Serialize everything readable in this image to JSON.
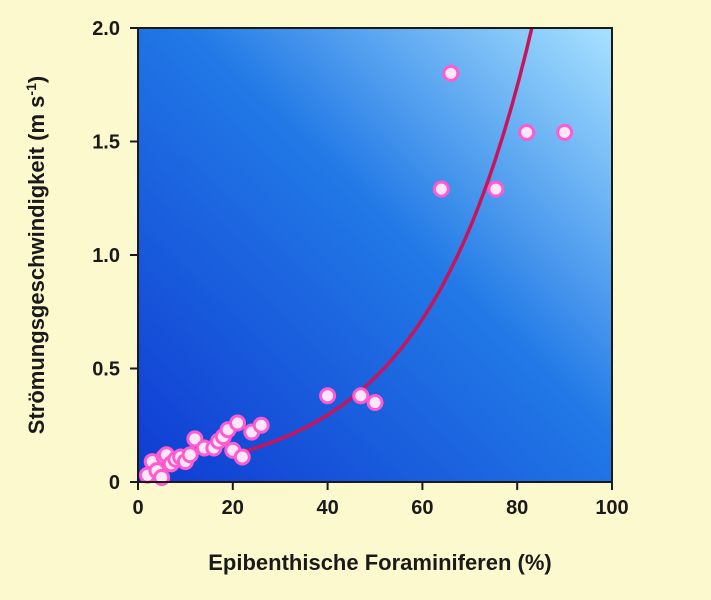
{
  "chart_data": {
    "type": "scatter",
    "xlabel": "Epibenthische Foraminiferen (%)",
    "ylabel_main": "Strömungsgeschwindigkeit (m s",
    "ylabel_sup": "-1",
    "ylabel_close": ")",
    "xlim": [
      0,
      100
    ],
    "ylim": [
      0,
      2.0
    ],
    "xticks": [
      "0",
      "20",
      "40",
      "60",
      "80",
      "100"
    ],
    "yticks": [
      "0",
      "0.5",
      "1.0",
      "1.5",
      "2.0"
    ],
    "grid": false,
    "legend": "none",
    "series": [
      {
        "points": [
          [
            2,
            0.03
          ],
          [
            3,
            0.09
          ],
          [
            4,
            0.05
          ],
          [
            5,
            0.02
          ],
          [
            5.5,
            0.11
          ],
          [
            6,
            0.12
          ],
          [
            7,
            0.08
          ],
          [
            8,
            0.1
          ],
          [
            9,
            0.11
          ],
          [
            10,
            0.09
          ],
          [
            11,
            0.12
          ],
          [
            12,
            0.19
          ],
          [
            14,
            0.15
          ],
          [
            16,
            0.15
          ],
          [
            17,
            0.18
          ],
          [
            18,
            0.2
          ],
          [
            19,
            0.23
          ],
          [
            20,
            0.14
          ],
          [
            21,
            0.26
          ],
          [
            22,
            0.11
          ],
          [
            24,
            0.22
          ],
          [
            26,
            0.25
          ],
          [
            40,
            0.38
          ],
          [
            47,
            0.38
          ],
          [
            50,
            0.35
          ],
          [
            64,
            1.29
          ],
          [
            66,
            1.8
          ],
          [
            75.5,
            1.29
          ],
          [
            82,
            1.54
          ],
          [
            90,
            1.54
          ]
        ]
      }
    ],
    "fit_curve": {
      "type": "exponential",
      "a": 0.05,
      "b": 0.0444,
      "x_range": [
        20,
        83
      ]
    },
    "colors": {
      "page_background": "#fdf9cf",
      "plot_gradient_dark": "#0f3bd2",
      "plot_gradient_mid": "#2279e6",
      "plot_gradient_light": "#a8e2ff",
      "curve": "#c8145a",
      "marker_stroke": "#ff5ad0",
      "marker_fill": "#ffe6f8"
    }
  }
}
